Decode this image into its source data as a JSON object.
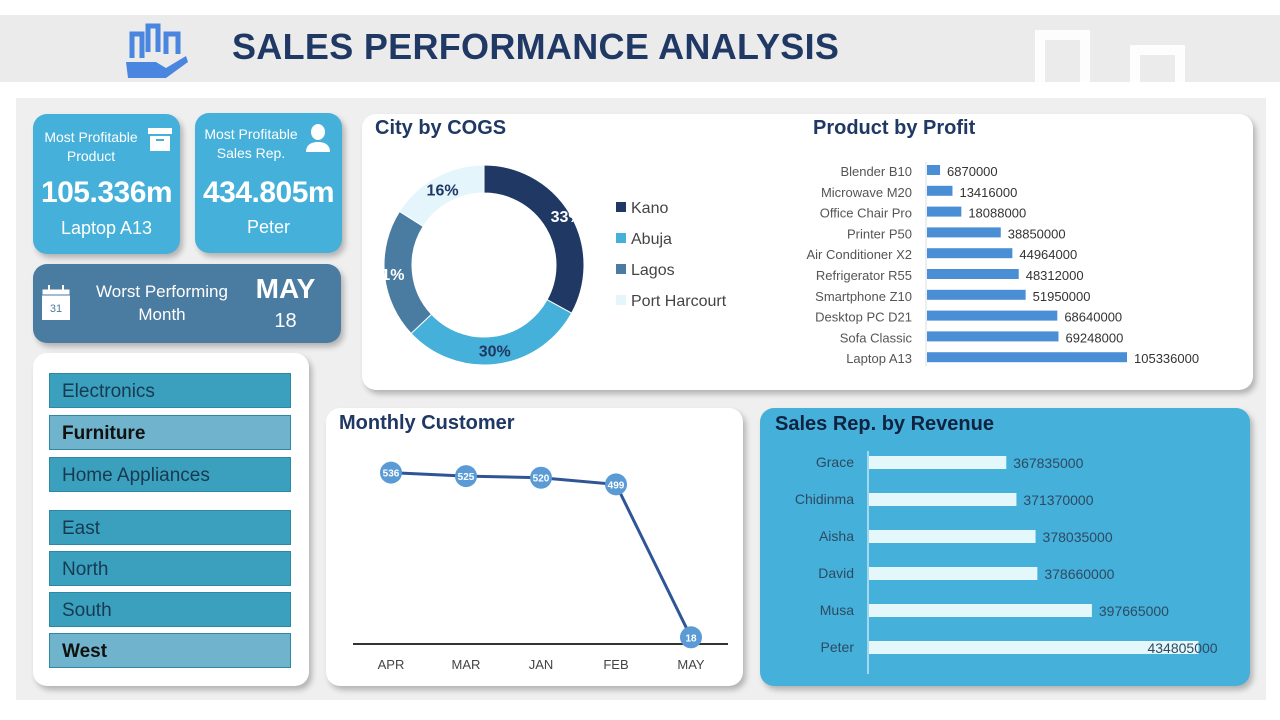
{
  "header": {
    "title": "SALES PERFORMANCE ANALYSIS",
    "logo_icon": "hand-bar-chart-icon"
  },
  "kpis": {
    "product": {
      "label_line1": "Most Profitable",
      "label_line2": "Product",
      "value": "105.336m",
      "name": "Laptop A13",
      "icon": "archive-box-icon"
    },
    "rep": {
      "label_line1": "Most Profitable",
      "label_line2": "Sales Rep.",
      "value": "434.805m",
      "name": "Peter",
      "icon": "user-icon"
    },
    "worst": {
      "label_line1": "Worst Performing",
      "label_line2": "Month",
      "month": "MAY",
      "value": "18",
      "calendar_day": "31",
      "icon": "calendar-icon"
    }
  },
  "slicers": {
    "category": [
      {
        "label": "Electronics",
        "selected": false
      },
      {
        "label": "Furniture",
        "selected": true
      },
      {
        "label": "Home Appliances",
        "selected": false
      }
    ],
    "region": [
      {
        "label": "East",
        "selected": false
      },
      {
        "label": "North",
        "selected": false
      },
      {
        "label": "South",
        "selected": false
      },
      {
        "label": "West",
        "selected": true
      }
    ]
  },
  "colors": {
    "accent": "#45b0d9",
    "navy": "#1f3864",
    "worst_card": "#4a7ba0",
    "bar_blue": "#4a8fd6"
  },
  "chart_data": [
    {
      "type": "pie",
      "title": "City by COGS",
      "donut": true,
      "legend": "right",
      "categories": [
        "Kano",
        "Abuja",
        "Lagos",
        "Port Harcourt"
      ],
      "values": [
        33,
        30,
        21,
        16
      ],
      "labels": [
        "33%",
        "30%",
        "21%",
        "16%"
      ],
      "colors": [
        "#1f3864",
        "#45b0d9",
        "#4a7ba0",
        "#e4f6fb"
      ]
    },
    {
      "type": "bar",
      "orientation": "horizontal",
      "title": "Product by Profit",
      "categories": [
        "Blender B10",
        "Microwave M20",
        "Office Chair Pro",
        "Printer P50",
        "Air Conditioner X2",
        "Refrigerator R55",
        "Smartphone Z10",
        "Desktop PC D21",
        "Sofa Classic",
        "Laptop A13"
      ],
      "values": [
        6870000,
        13416000,
        18088000,
        38850000,
        44964000,
        48312000,
        51950000,
        68640000,
        69248000,
        105336000
      ],
      "xlim": [
        0,
        110000000
      ],
      "color": "#4a8fd6"
    },
    {
      "type": "line",
      "title": "Monthly Customer",
      "categories": [
        "APR",
        "MAR",
        "JAN",
        "FEB",
        "MAY"
      ],
      "values": [
        536,
        525,
        520,
        499,
        18
      ],
      "ylim": [
        0,
        560
      ],
      "color": "#2f5597"
    },
    {
      "type": "bar",
      "orientation": "horizontal",
      "title": "Sales Rep. by Revenue",
      "categories": [
        "Grace",
        "Chidinma",
        "Aisha",
        "David",
        "Musa",
        "Peter"
      ],
      "values": [
        367835000,
        371370000,
        378035000,
        378660000,
        397665000,
        434805000
      ],
      "xlim": [
        320000000,
        440000000
      ],
      "color": "#e4f8fb"
    }
  ]
}
